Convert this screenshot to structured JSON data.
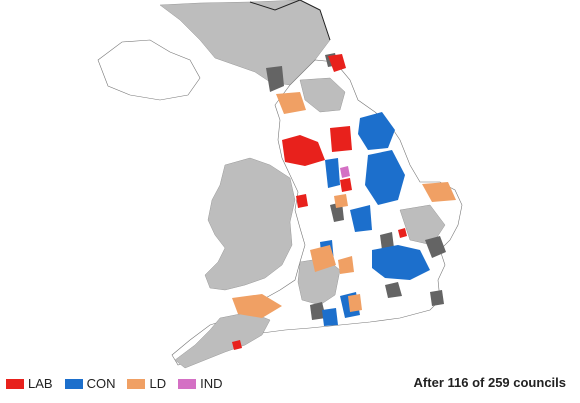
{
  "legend": {
    "items": [
      {
        "label": "LAB",
        "color": "#e8211c"
      },
      {
        "label": "CON",
        "color": "#1c6fcc"
      },
      {
        "label": "LD",
        "color": "#f0a064"
      },
      {
        "label": "IND",
        "color": "#d470c4"
      }
    ]
  },
  "status": {
    "declared": 116,
    "total": 259,
    "text": "After 116 of 259 councils"
  },
  "colors": {
    "not_declared": "#ffffff",
    "no_election": "#bdbdbd",
    "no_overall_control": "#646464",
    "outline": "#888888"
  }
}
